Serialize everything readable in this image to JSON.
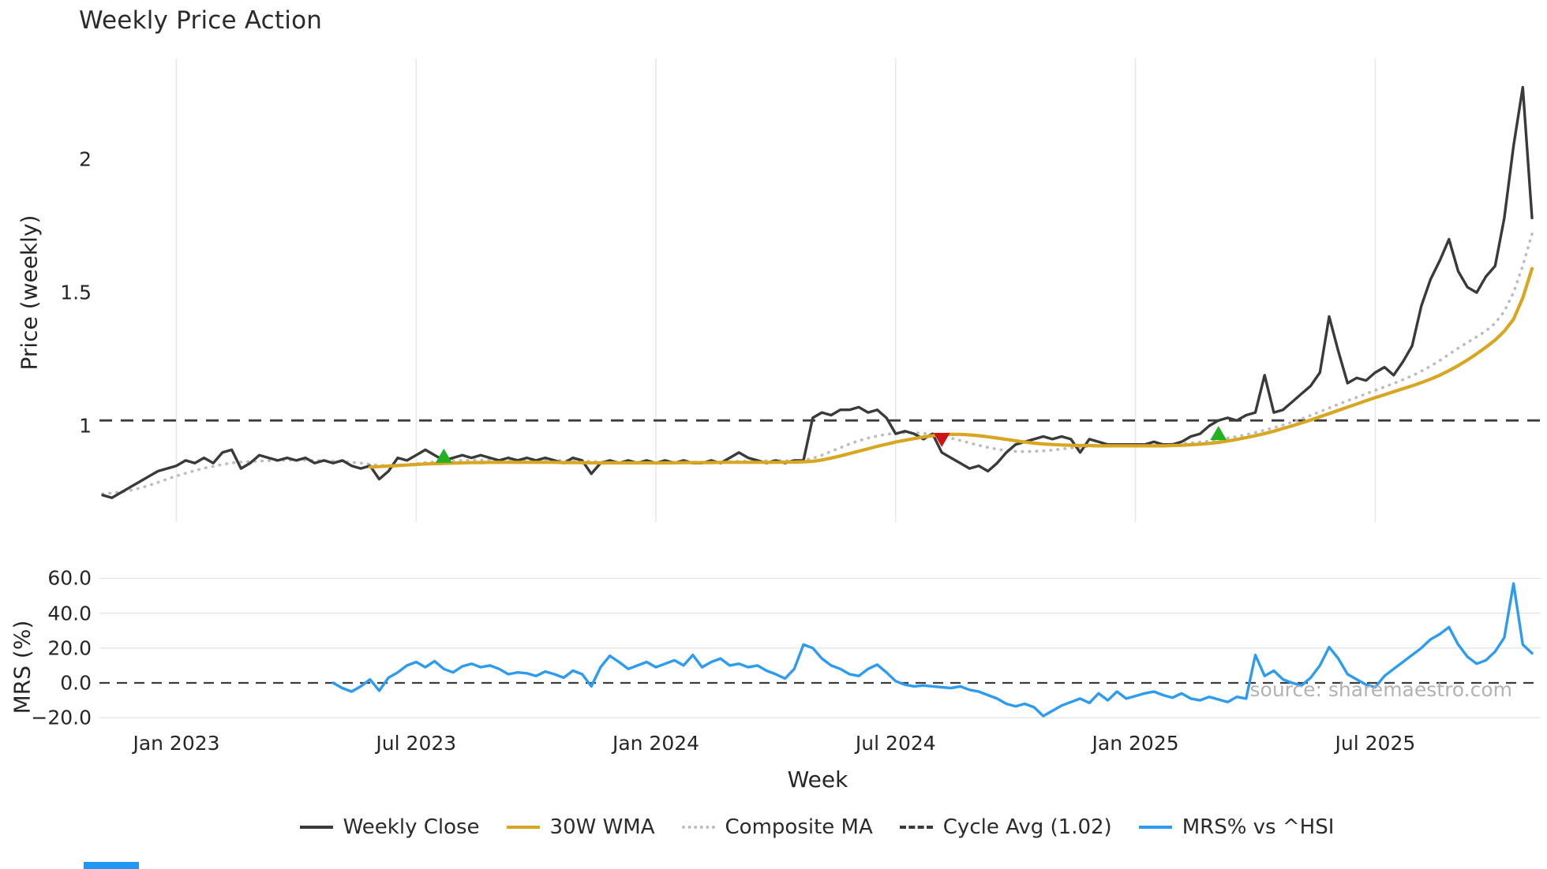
{
  "title": "Weekly Price Action",
  "source_note": "source: sharemaestro.com",
  "axes": {
    "xlabel": "Week",
    "price_ylabel": "Price (weekly)",
    "mrs_ylabel": "MRS (%)"
  },
  "legend": {
    "items": [
      {
        "label": "Weekly Close",
        "color": "#3a3a3a",
        "style": "solid"
      },
      {
        "label": "30W WMA",
        "color": "#d9a621",
        "style": "solid"
      },
      {
        "label": "Composite MA",
        "color": "#bdbdbd",
        "style": "dotted"
      },
      {
        "label": "Cycle Avg (1.02)",
        "color": "#3a3a3a",
        "style": "dashed"
      },
      {
        "label": "MRS% vs ^HSI",
        "color": "#2d9cf0",
        "style": "solid"
      }
    ]
  },
  "chart_data": [
    {
      "type": "line",
      "panel": "price",
      "xlabel": "Week",
      "ylabel": "Price (weekly)",
      "x_unit": "week_index_from_2022-11",
      "xlim": [
        0,
        155
      ],
      "ylim": [
        0.64,
        2.38
      ],
      "grid": "vertical-only",
      "yticks": [
        "2",
        "1.5",
        "1"
      ],
      "xticks": [
        {
          "week": 8,
          "label": "Jan 2023"
        },
        {
          "week": 34,
          "label": "Jul 2023"
        },
        {
          "week": 60,
          "label": "Jan 2024"
        },
        {
          "week": 86,
          "label": "Jul 2024"
        },
        {
          "week": 112,
          "label": "Jan 2025"
        },
        {
          "week": 138,
          "label": "Jul 2025"
        }
      ],
      "cycle_avg": 1.02,
      "series": [
        {
          "name": "Weekly Close",
          "color": "#3a3a3a",
          "style": "solid",
          "start_week": 0,
          "values": [
            0.74,
            0.73,
            0.75,
            0.77,
            0.79,
            0.81,
            0.83,
            0.84,
            0.85,
            0.87,
            0.86,
            0.88,
            0.86,
            0.9,
            0.91,
            0.84,
            0.86,
            0.89,
            0.88,
            0.87,
            0.88,
            0.87,
            0.88,
            0.86,
            0.87,
            0.86,
            0.87,
            0.85,
            0.84,
            0.85,
            0.8,
            0.83,
            0.88,
            0.87,
            0.89,
            0.91,
            0.89,
            0.87,
            0.88,
            0.89,
            0.88,
            0.89,
            0.88,
            0.87,
            0.88,
            0.87,
            0.88,
            0.87,
            0.88,
            0.87,
            0.86,
            0.88,
            0.87,
            0.82,
            0.86,
            0.87,
            0.86,
            0.87,
            0.86,
            0.87,
            0.86,
            0.87,
            0.86,
            0.87,
            0.86,
            0.86,
            0.87,
            0.86,
            0.88,
            0.9,
            0.88,
            0.87,
            0.86,
            0.87,
            0.86,
            0.87,
            0.87,
            1.03,
            1.05,
            1.04,
            1.06,
            1.06,
            1.07,
            1.05,
            1.06,
            1.03,
            0.97,
            0.98,
            0.97,
            0.95,
            0.97,
            0.9,
            0.88,
            0.86,
            0.84,
            0.85,
            0.83,
            0.86,
            0.9,
            0.93,
            0.94,
            0.95,
            0.96,
            0.95,
            0.96,
            0.95,
            0.9,
            0.95,
            0.94,
            0.93,
            0.93,
            0.93,
            0.93,
            0.93,
            0.94,
            0.93,
            0.93,
            0.94,
            0.96,
            0.97,
            1.0,
            1.02,
            1.03,
            1.02,
            1.04,
            1.05,
            1.19,
            1.05,
            1.06,
            1.09,
            1.12,
            1.15,
            1.2,
            1.41,
            1.28,
            1.16,
            1.18,
            1.17,
            1.2,
            1.22,
            1.19,
            1.24,
            1.3,
            1.45,
            1.55,
            1.62,
            1.7,
            1.58,
            1.52,
            1.5,
            1.56,
            1.6,
            1.78,
            2.05,
            2.27,
            1.78
          ]
        },
        {
          "name": "30W WMA",
          "color": "#d9a621",
          "style": "solid",
          "start_week": 29,
          "values": [
            0.845,
            0.847,
            0.849,
            0.851,
            0.853,
            0.855,
            0.857,
            0.858,
            0.859,
            0.86,
            0.861,
            0.862,
            0.862,
            0.863,
            0.863,
            0.863,
            0.863,
            0.863,
            0.863,
            0.863,
            0.863,
            0.862,
            0.862,
            0.862,
            0.861,
            0.861,
            0.861,
            0.861,
            0.861,
            0.861,
            0.861,
            0.861,
            0.861,
            0.861,
            0.862,
            0.862,
            0.862,
            0.862,
            0.863,
            0.863,
            0.863,
            0.863,
            0.863,
            0.863,
            0.863,
            0.864,
            0.864,
            0.865,
            0.867,
            0.872,
            0.879,
            0.887,
            0.896,
            0.905,
            0.914,
            0.923,
            0.931,
            0.939,
            0.946,
            0.952,
            0.958,
            0.963,
            0.966,
            0.968,
            0.968,
            0.966,
            0.963,
            0.959,
            0.954,
            0.949,
            0.944,
            0.939,
            0.935,
            0.932,
            0.93,
            0.928,
            0.927,
            0.926,
            0.926,
            0.925,
            0.925,
            0.925,
            0.925,
            0.925,
            0.925,
            0.925,
            0.925,
            0.926,
            0.927,
            0.929,
            0.931,
            0.934,
            0.938,
            0.943,
            0.949,
            0.956,
            0.963,
            0.971,
            0.98,
            0.99,
            1.0,
            1.011,
            1.022,
            1.034,
            1.046,
            1.058,
            1.07,
            1.082,
            1.094,
            1.106,
            1.117,
            1.128,
            1.139,
            1.15,
            1.162,
            1.175,
            1.19,
            1.207,
            1.226,
            1.247,
            1.27,
            1.295,
            1.322,
            1.355,
            1.4,
            1.48,
            1.59
          ]
        },
        {
          "name": "Composite MA",
          "color": "#bdbdbd",
          "style": "dotted",
          "start_week": 0,
          "values": [
            0.745,
            0.748,
            0.752,
            0.758,
            0.766,
            0.776,
            0.788,
            0.8,
            0.812,
            0.822,
            0.832,
            0.841,
            0.848,
            0.855,
            0.861,
            0.864,
            0.866,
            0.868,
            0.869,
            0.87,
            0.871,
            0.871,
            0.871,
            0.87,
            0.869,
            0.868,
            0.866,
            0.863,
            0.86,
            0.856,
            0.852,
            0.85,
            0.851,
            0.854,
            0.858,
            0.862,
            0.865,
            0.867,
            0.869,
            0.87,
            0.871,
            0.872,
            0.872,
            0.872,
            0.872,
            0.872,
            0.871,
            0.871,
            0.871,
            0.87,
            0.87,
            0.869,
            0.869,
            0.867,
            0.865,
            0.864,
            0.864,
            0.864,
            0.864,
            0.864,
            0.864,
            0.864,
            0.864,
            0.864,
            0.864,
            0.864,
            0.864,
            0.865,
            0.866,
            0.867,
            0.868,
            0.869,
            0.869,
            0.869,
            0.869,
            0.869,
            0.87,
            0.878,
            0.89,
            0.904,
            0.918,
            0.932,
            0.944,
            0.954,
            0.962,
            0.968,
            0.972,
            0.974,
            0.974,
            0.972,
            0.968,
            0.962,
            0.954,
            0.945,
            0.936,
            0.927,
            0.919,
            0.912,
            0.907,
            0.904,
            0.903,
            0.904,
            0.906,
            0.909,
            0.913,
            0.917,
            0.92,
            0.923,
            0.925,
            0.927,
            0.928,
            0.929,
            0.929,
            0.929,
            0.929,
            0.93,
            0.931,
            0.933,
            0.936,
            0.939,
            0.943,
            0.948,
            0.954,
            0.96,
            0.967,
            0.975,
            0.984,
            0.993,
            1.003,
            1.014,
            1.026,
            1.039,
            1.053,
            1.067,
            1.081,
            1.094,
            1.107,
            1.12,
            1.133,
            1.146,
            1.159,
            1.173,
            1.188,
            1.205,
            1.224,
            1.245,
            1.268,
            1.291,
            1.313,
            1.334,
            1.356,
            1.385,
            1.43,
            1.5,
            1.6,
            1.72
          ]
        }
      ],
      "markers": [
        {
          "type": "buy",
          "week": 37,
          "price": 0.885,
          "color": "#21b121"
        },
        {
          "type": "sell",
          "week": 91,
          "price": 0.95,
          "color": "#cc1414"
        },
        {
          "type": "buy",
          "week": 121,
          "price": 0.97,
          "color": "#21b121"
        }
      ]
    },
    {
      "type": "line",
      "panel": "mrs",
      "ylabel": "MRS (%)",
      "ylim": [
        -24,
        63
      ],
      "grid": "horizontal",
      "zero_line": 0,
      "yticks": [
        "60.0",
        "40.0",
        "20.0",
        "0.0",
        "−20.0"
      ],
      "series": [
        {
          "name": "MRS% vs ^HSI",
          "color": "#2d9cf0",
          "style": "solid",
          "start_week": 25,
          "values": [
            0.0,
            -3.0,
            -5.0,
            -2.0,
            2.0,
            -4.5,
            3.0,
            6.0,
            10.0,
            12.0,
            9.0,
            12.5,
            8.0,
            6.0,
            9.5,
            11.0,
            9.0,
            10.0,
            8.0,
            5.0,
            6.0,
            5.5,
            4.0,
            6.5,
            5.0,
            3.0,
            7.0,
            5.0,
            -2.0,
            9.0,
            15.5,
            12.0,
            8.0,
            10.0,
            12.0,
            9.0,
            11.0,
            13.0,
            10.0,
            16.0,
            9.0,
            12.0,
            14.0,
            10.0,
            11.0,
            9.0,
            10.0,
            7.0,
            5.0,
            2.5,
            8.0,
            22.0,
            20.0,
            14.0,
            10.0,
            8.0,
            5.0,
            4.0,
            8.0,
            10.5,
            6.0,
            1.0,
            -1.0,
            -2.0,
            -1.5,
            -2.0,
            -2.5,
            -3.0,
            -2.0,
            -4.0,
            -5.0,
            -7.0,
            -9.0,
            -12.0,
            -13.5,
            -12.0,
            -14.0,
            -19.0,
            -16.0,
            -13.0,
            -11.0,
            -9.0,
            -11.5,
            -6.0,
            -10.0,
            -5.0,
            -9.0,
            -7.5,
            -6.0,
            -5.0,
            -7.0,
            -8.5,
            -6.0,
            -9.0,
            -10.0,
            -8.0,
            -9.5,
            -11.0,
            -8.0,
            -9.0,
            16.0,
            4.0,
            7.0,
            2.0,
            0.0,
            -1.5,
            3.0,
            10.0,
            20.5,
            14.0,
            5.0,
            2.0,
            -1.0,
            -2.5,
            4.0,
            8.0,
            12.0,
            16.0,
            20.0,
            25.0,
            28.0,
            32.0,
            22.0,
            15.0,
            11.0,
            13.0,
            18.0,
            26.0,
            57.0,
            22.0,
            17.0
          ]
        }
      ]
    }
  ]
}
